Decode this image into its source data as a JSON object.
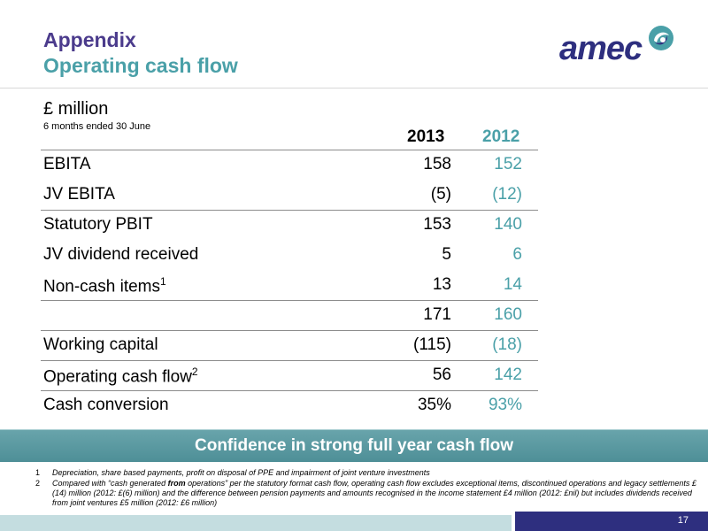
{
  "header": {
    "title_line1": "Appendix",
    "title_line2": "Operating cash flow",
    "logo_text": "amec"
  },
  "table": {
    "unit": "£ million",
    "period": "6 months ended 30 June",
    "columns": [
      "2013",
      "2012"
    ],
    "rows": [
      {
        "label": "EBITA",
        "sup": "",
        "v2013": "158",
        "v2012": "152"
      },
      {
        "label": "JV EBITA",
        "sup": "",
        "v2013": "(5)",
        "v2012": "(12)"
      },
      {
        "label": "Statutory PBIT",
        "sup": "",
        "v2013": "153",
        "v2012": "140"
      },
      {
        "label": "JV dividend received",
        "sup": "",
        "v2013": "5",
        "v2012": "6"
      },
      {
        "label": "Non-cash items",
        "sup": "1",
        "v2013": "13",
        "v2012": "14"
      },
      {
        "label": "",
        "sup": "",
        "v2013": "171",
        "v2012": "160"
      },
      {
        "label": "Working capital",
        "sup": "",
        "v2013": "(115)",
        "v2012": "(18)"
      },
      {
        "label": "Operating cash flow",
        "sup": "2",
        "v2013": "56",
        "v2012": "142"
      },
      {
        "label": "Cash conversion",
        "sup": "",
        "v2013": "35%",
        "v2012": "93%"
      }
    ]
  },
  "banner": {
    "text": "Confidence in strong full year cash flow"
  },
  "footnotes": [
    {
      "num": "1",
      "text_before": "Depreciation, share based payments, profit on disposal of PPE and impairment of joint venture investments",
      "bold": "",
      "text_after": ""
    },
    {
      "num": "2",
      "text_before": "Compared with “cash generated ",
      "bold": "from",
      "text_after": " operations” per the statutory format cash flow, operating cash flow excludes exceptional items, discontinued operations  and legacy settlements £(14) million (2012: £(6) million) and the difference between pension payments and amounts recognised in the income statement £4 million (2012: £nil) but includes dividends received from joint ventures £5 million (2012: £6 million)"
    }
  ],
  "footer": {
    "page_number": "17"
  },
  "colors": {
    "title_purple": "#4b3b8c",
    "accent_teal": "#4aa0a8",
    "logo_navy": "#2e2f7f",
    "banner_teal": "#5e9aa2"
  }
}
